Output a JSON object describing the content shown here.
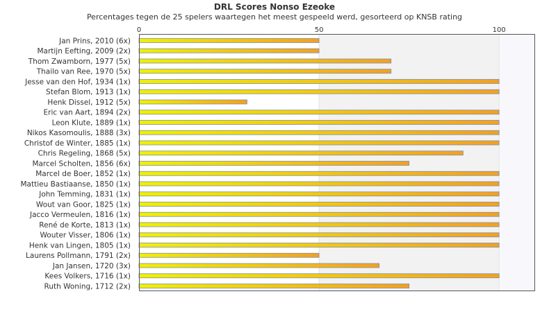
{
  "chart_data": {
    "type": "bar",
    "orientation": "horizontal",
    "title": "DRL Scores Nonso Ezeoke",
    "subtitle": "Percentages tegen de 25 spelers waartegen het meest gespeeld werd, gesorteerd op KNSB rating",
    "categories": [
      "Jan Prins, 2010 (6x)",
      "Martijn Eefting, 2009 (2x)",
      "Thom Zwamborn, 1977 (5x)",
      "Thailo van Ree, 1970 (5x)",
      "Jesse van den Hof, 1934 (1x)",
      "Stefan Blom, 1913 (1x)",
      "Henk Dissel, 1912 (5x)",
      "Eric van Aart, 1894 (2x)",
      "Leon Klute, 1889 (1x)",
      "Nikos Kasomoulis, 1888 (3x)",
      "Christof de Winter, 1885 (1x)",
      "Chris Regeling, 1868 (5x)",
      "Marcel Scholten, 1856 (6x)",
      "Marcel de Boer, 1852 (1x)",
      "Mattieu Bastiaanse, 1850 (1x)",
      "John Temming, 1831 (1x)",
      "Wout van Goor, 1825 (1x)",
      "Jacco Vermeulen, 1816 (1x)",
      "René de Korte, 1813 (1x)",
      "Wouter Visser, 1806 (1x)",
      "Henk van Lingen, 1805 (1x)",
      "Laurens Pollmann, 1791 (2x)",
      "Jan Jansen, 1720 (3x)",
      "Kees Volkers, 1716 (1x)",
      "Ruth Woning, 1712 (2x)"
    ],
    "values": [
      50,
      50,
      70,
      70,
      100,
      100,
      30,
      100,
      100,
      100,
      100,
      90,
      75,
      100,
      100,
      100,
      100,
      100,
      100,
      100,
      100,
      50,
      66.7,
      100,
      75
    ],
    "xlim": [
      0,
      110
    ],
    "xticks": [
      0,
      50,
      100
    ],
    "bands": [
      {
        "from": 50,
        "to": 100,
        "color": "#f2f2f2"
      },
      {
        "from": 100,
        "to": 110,
        "color": "#f8f8fc"
      }
    ],
    "grid": true,
    "bar_gradient": [
      "#f0f000",
      "#f4a020"
    ],
    "bar_stroke": "#7a8fb0"
  }
}
